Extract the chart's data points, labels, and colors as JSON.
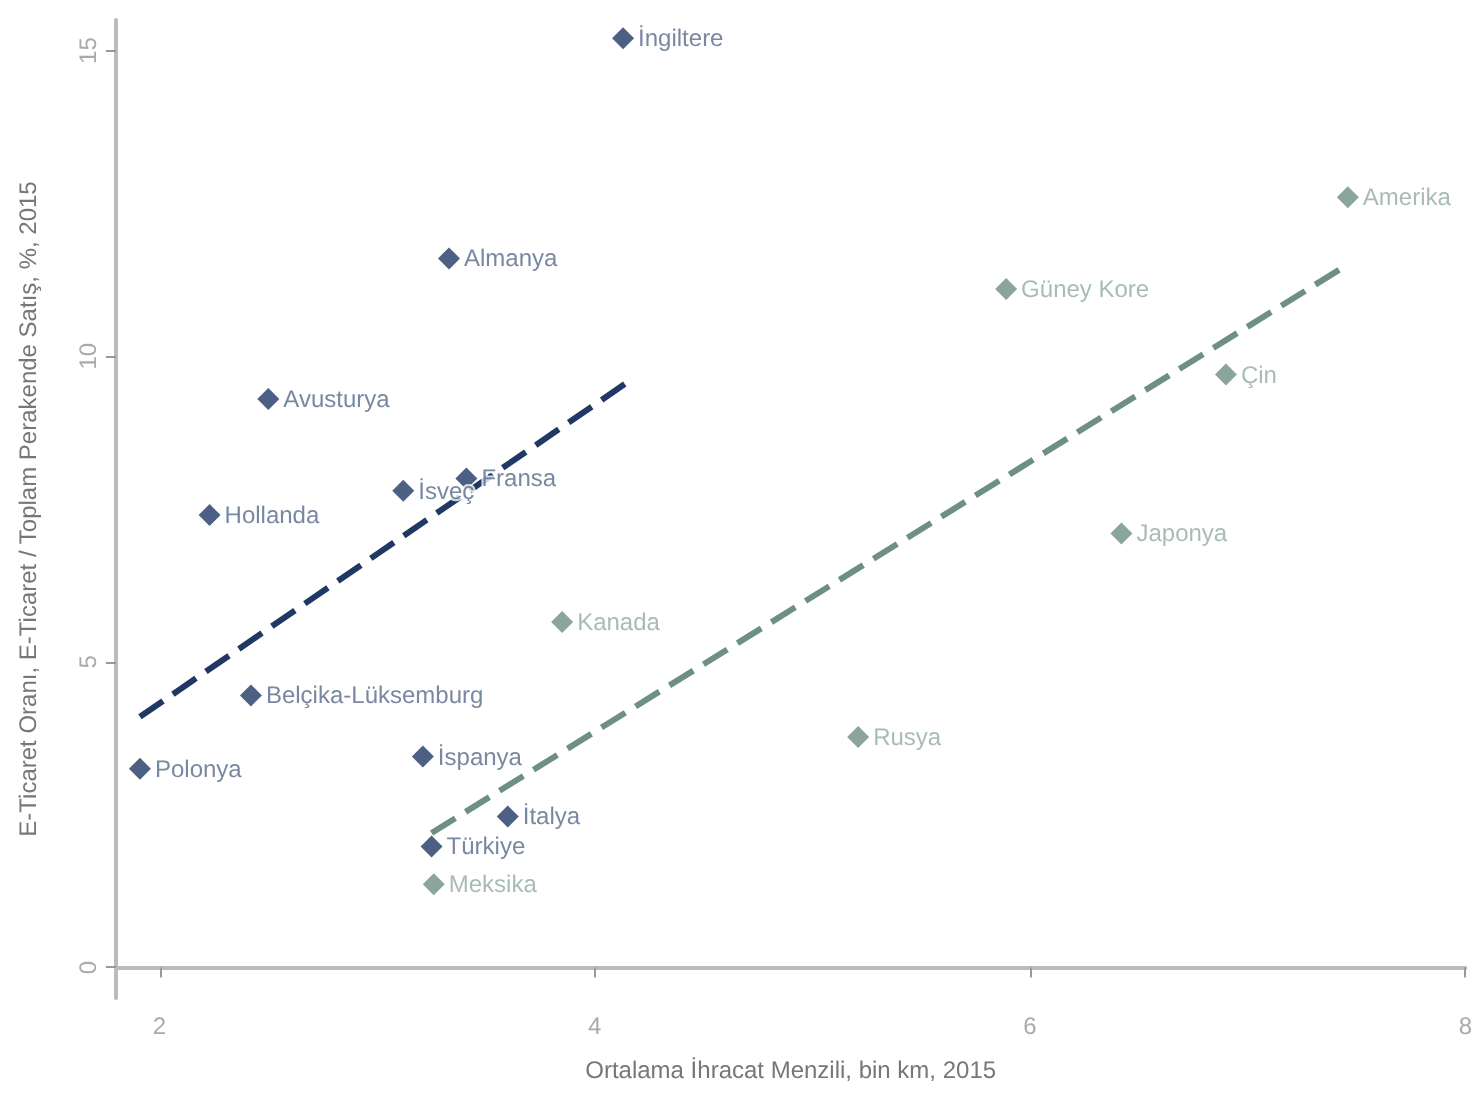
{
  "chart_data": {
    "type": "scatter",
    "xlabel": "Ortalama İhracat Menzili, bin km, 2015",
    "ylabel": "E-Ticaret Oranı, E-Ticaret / Toplam Perakende Satış, %, 2015",
    "xlim": [
      1.8,
      8
    ],
    "xticks": [
      2,
      4,
      6,
      8
    ],
    "ylim": [
      -0.5,
      15.5
    ],
    "yticks": [
      0,
      5,
      10,
      15
    ],
    "grid": false,
    "marker": "diamond",
    "series": [
      {
        "color": "#1f3864",
        "x": [
          4.13,
          3.33,
          2.5,
          2.23,
          3.12,
          3.41,
          2.42,
          1.91,
          3.21,
          3.6,
          3.25
        ],
        "values": [
          15.2,
          11.6,
          9.3,
          7.4,
          7.8,
          8.0,
          4.45,
          3.25,
          3.45,
          2.47,
          1.98
        ],
        "value_labels": [
          "İngiltere",
          "Almanya",
          "Avusturya",
          "Hollanda",
          "İsveç",
          "Fransa",
          "Belçika-Lüksemburg",
          "Polonya",
          "İspanya",
          "İtalya",
          "Türkiye"
        ]
      },
      {
        "color": "#6e8f83",
        "x": [
          7.46,
          5.89,
          6.9,
          6.42,
          3.85,
          5.21,
          3.26
        ],
        "values": [
          12.6,
          11.1,
          9.7,
          7.1,
          5.65,
          3.77,
          1.36
        ],
        "value_labels": [
          "Amerika",
          "Güney Kore",
          "Çin",
          "Japonya",
          "Kanada",
          "Rusya",
          "Meksika"
        ]
      },
      {
        "type": "line",
        "color": "#1f3864",
        "line_style": "dashed",
        "marker": "none",
        "x": [
          1.91,
          4.14
        ],
        "values": [
          4.1,
          9.55
        ]
      },
      {
        "type": "line",
        "color": "#6e8f83",
        "line_style": "dashed",
        "marker": "none",
        "x": [
          3.25,
          7.46
        ],
        "values": [
          2.2,
          11.5
        ]
      }
    ]
  }
}
